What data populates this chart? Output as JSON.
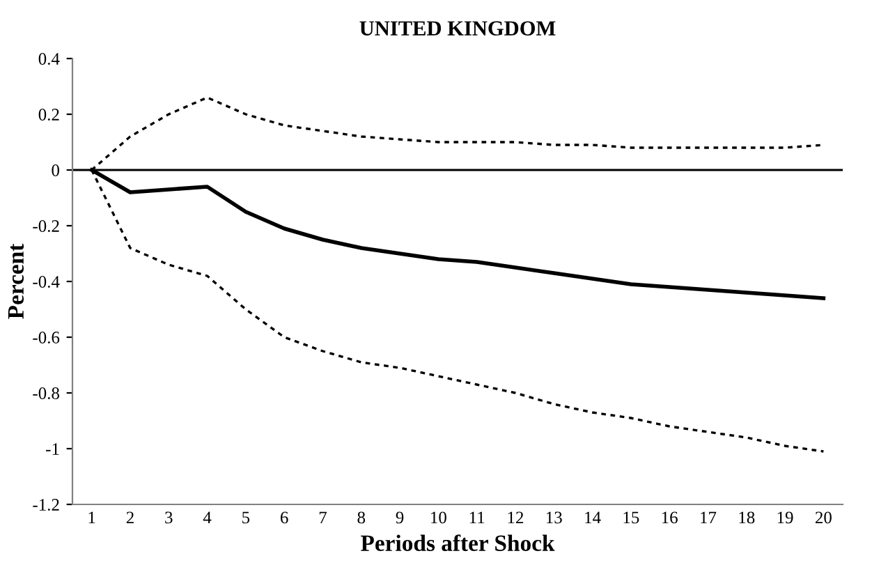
{
  "chart_data": {
    "type": "line",
    "title": "UNITED KINGDOM",
    "xlabel": "Periods after Shock",
    "ylabel": "Percent",
    "categories": [
      "1",
      "2",
      "3",
      "4",
      "5",
      "6",
      "7",
      "8",
      "9",
      "10",
      "11",
      "12",
      "13",
      "14",
      "15",
      "16",
      "17",
      "18",
      "19",
      "20"
    ],
    "series": [
      {
        "color": "#000000",
        "line_style": "solid",
        "values": [
          0,
          -0.08,
          -0.07,
          -0.06,
          -0.15,
          -0.21,
          -0.25,
          -0.28,
          -0.3,
          -0.32,
          -0.33,
          -0.35,
          -0.37,
          -0.39,
          -0.41,
          -0.42,
          -0.43,
          -0.44,
          -0.45,
          -0.46
        ]
      },
      {
        "color": "#000000",
        "line_style": "dotted",
        "values": [
          0,
          0.12,
          0.2,
          0.26,
          0.2,
          0.16,
          0.14,
          0.12,
          0.11,
          0.1,
          0.1,
          0.1,
          0.09,
          0.09,
          0.08,
          0.08,
          0.08,
          0.08,
          0.08,
          0.09
        ]
      },
      {
        "color": "#000000",
        "line_style": "dotted",
        "values": [
          0,
          -0.28,
          -0.34,
          -0.38,
          -0.5,
          -0.6,
          -0.65,
          -0.69,
          -0.71,
          -0.74,
          -0.77,
          -0.8,
          -0.84,
          -0.87,
          -0.89,
          -0.92,
          -0.94,
          -0.96,
          -0.99,
          -1.01
        ]
      }
    ],
    "ylim": [
      -1.2,
      0.4
    ],
    "yticks": [
      -1.2,
      -1,
      -0.8,
      -0.6,
      -0.4,
      -0.2,
      0,
      0.2,
      0.4
    ],
    "ref_lines": [
      {
        "axis": "y",
        "value": 0,
        "color": "#000000"
      }
    ],
    "grid": false,
    "legend": false,
    "marker": "none"
  }
}
